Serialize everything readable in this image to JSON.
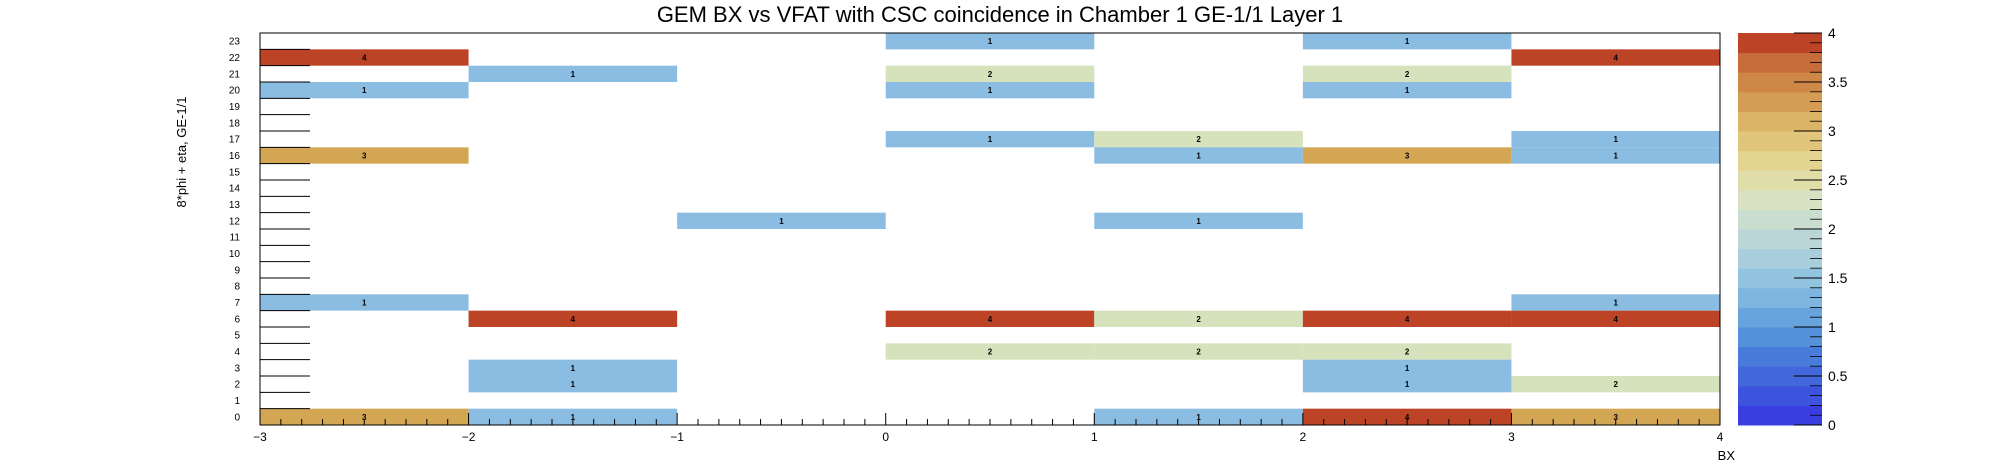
{
  "chart_data": {
    "type": "heatmap",
    "title": "GEM BX vs VFAT with CSC coincidence in Chamber 1 GE-1/1 Layer 1",
    "xlabel": "BX",
    "ylabel": "8*phi + eta, GE-1/1",
    "xlim": [
      -3,
      4
    ],
    "ylim": [
      0,
      24
    ],
    "x_ticks": [
      "−3",
      "−2",
      "−1",
      "0",
      "1",
      "2",
      "3",
      "4"
    ],
    "y_ticks": [
      "0",
      "1",
      "2",
      "3",
      "4",
      "5",
      "6",
      "7",
      "8",
      "9",
      "10",
      "11",
      "12",
      "13",
      "14",
      "15",
      "16",
      "17",
      "18",
      "19",
      "20",
      "21",
      "22",
      "23"
    ],
    "zlim": [
      0,
      4
    ],
    "z_ticks": [
      "0",
      "0.5",
      "1",
      "1.5",
      "2",
      "2.5",
      "3",
      "3.5",
      "4"
    ],
    "cells": [
      {
        "x": -3,
        "y": 22,
        "z": 4
      },
      {
        "x": -3,
        "y": 20,
        "z": 1
      },
      {
        "x": -3,
        "y": 16,
        "z": 3
      },
      {
        "x": -3,
        "y": 7,
        "z": 1
      },
      {
        "x": -3,
        "y": 0,
        "z": 3
      },
      {
        "x": -2,
        "y": 21,
        "z": 1
      },
      {
        "x": -2,
        "y": 6,
        "z": 4
      },
      {
        "x": -2,
        "y": 3,
        "z": 1
      },
      {
        "x": -2,
        "y": 2,
        "z": 1
      },
      {
        "x": -2,
        "y": 0,
        "z": 1
      },
      {
        "x": -1,
        "y": 12,
        "z": 1
      },
      {
        "x": 0,
        "y": 23,
        "z": 1
      },
      {
        "x": 0,
        "y": 21,
        "z": 2
      },
      {
        "x": 0,
        "y": 20,
        "z": 1
      },
      {
        "x": 0,
        "y": 17,
        "z": 1
      },
      {
        "x": 0,
        "y": 6,
        "z": 4
      },
      {
        "x": 0,
        "y": 4,
        "z": 2
      },
      {
        "x": 1,
        "y": 17,
        "z": 2
      },
      {
        "x": 1,
        "y": 16,
        "z": 1
      },
      {
        "x": 1,
        "y": 12,
        "z": 1
      },
      {
        "x": 1,
        "y": 6,
        "z": 2
      },
      {
        "x": 1,
        "y": 4,
        "z": 2
      },
      {
        "x": 1,
        "y": 0,
        "z": 1
      },
      {
        "x": 2,
        "y": 23,
        "z": 1
      },
      {
        "x": 2,
        "y": 21,
        "z": 2
      },
      {
        "x": 2,
        "y": 20,
        "z": 1
      },
      {
        "x": 2,
        "y": 16,
        "z": 3
      },
      {
        "x": 2,
        "y": 6,
        "z": 4
      },
      {
        "x": 2,
        "y": 4,
        "z": 2
      },
      {
        "x": 2,
        "y": 3,
        "z": 1
      },
      {
        "x": 2,
        "y": 2,
        "z": 1
      },
      {
        "x": 2,
        "y": 0,
        "z": 4
      },
      {
        "x": 3,
        "y": 22,
        "z": 4
      },
      {
        "x": 3,
        "y": 17,
        "z": 1
      },
      {
        "x": 3,
        "y": 16,
        "z": 1
      },
      {
        "x": 3,
        "y": 7,
        "z": 1
      },
      {
        "x": 3,
        "y": 6,
        "z": 4
      },
      {
        "x": 3,
        "y": 2,
        "z": 2
      },
      {
        "x": 3,
        "y": 0,
        "z": 3
      }
    ],
    "colors": {
      "z1": "#8bbce2",
      "z2": "#d6e2bc",
      "z3": "#d3a654",
      "z4": "#bd4326",
      "palette": [
        "#3a3ee0",
        "#3d53dd",
        "#4268dc",
        "#497bdb",
        "#5590da",
        "#67a3dc",
        "#7eb6e0",
        "#93c4df",
        "#a8cedd",
        "#bad6d6",
        "#cadecf",
        "#d8e1c2",
        "#e0dda9",
        "#e3d491",
        "#e1c57a",
        "#dcb465",
        "#d59d53",
        "#cf8747",
        "#c76c3b",
        "#bd4326"
      ]
    }
  }
}
